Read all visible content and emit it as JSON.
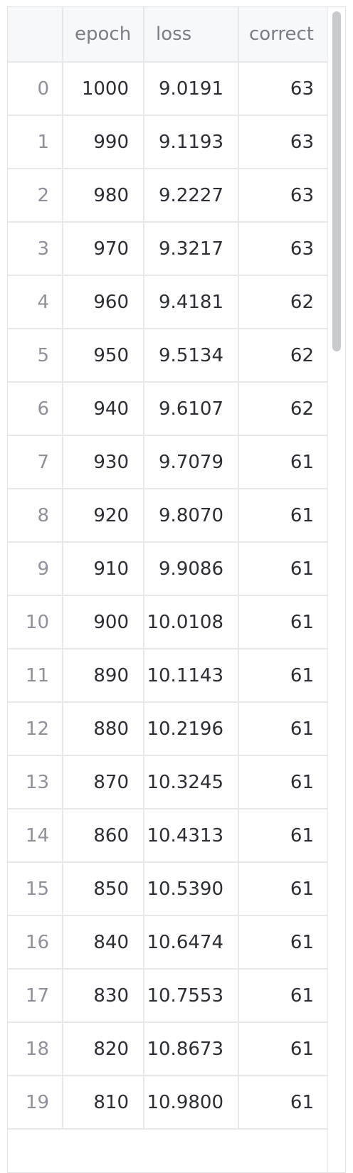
{
  "table": {
    "columns": [
      "",
      "epoch",
      "loss",
      "correct"
    ],
    "rows": [
      {
        "index": "0",
        "epoch": "1000",
        "loss": "9.0191",
        "correct": "63"
      },
      {
        "index": "1",
        "epoch": "990",
        "loss": "9.1193",
        "correct": "63"
      },
      {
        "index": "2",
        "epoch": "980",
        "loss": "9.2227",
        "correct": "63"
      },
      {
        "index": "3",
        "epoch": "970",
        "loss": "9.3217",
        "correct": "63"
      },
      {
        "index": "4",
        "epoch": "960",
        "loss": "9.4181",
        "correct": "62"
      },
      {
        "index": "5",
        "epoch": "950",
        "loss": "9.5134",
        "correct": "62"
      },
      {
        "index": "6",
        "epoch": "940",
        "loss": "9.6107",
        "correct": "62"
      },
      {
        "index": "7",
        "epoch": "930",
        "loss": "9.7079",
        "correct": "61"
      },
      {
        "index": "8",
        "epoch": "920",
        "loss": "9.8070",
        "correct": "61"
      },
      {
        "index": "9",
        "epoch": "910",
        "loss": "9.9086",
        "correct": "61"
      },
      {
        "index": "10",
        "epoch": "900",
        "loss": "10.0108",
        "correct": "61"
      },
      {
        "index": "11",
        "epoch": "890",
        "loss": "10.1143",
        "correct": "61"
      },
      {
        "index": "12",
        "epoch": "880",
        "loss": "10.2196",
        "correct": "61"
      },
      {
        "index": "13",
        "epoch": "870",
        "loss": "10.3245",
        "correct": "61"
      },
      {
        "index": "14",
        "epoch": "860",
        "loss": "10.4313",
        "correct": "61"
      },
      {
        "index": "15",
        "epoch": "850",
        "loss": "10.5390",
        "correct": "61"
      },
      {
        "index": "16",
        "epoch": "840",
        "loss": "10.6474",
        "correct": "61"
      },
      {
        "index": "17",
        "epoch": "830",
        "loss": "10.7553",
        "correct": "61"
      },
      {
        "index": "18",
        "epoch": "820",
        "loss": "10.8673",
        "correct": "61"
      },
      {
        "index": "19",
        "epoch": "810",
        "loss": "10.9800",
        "correct": "61"
      }
    ]
  },
  "colors": {
    "header_bg": "#f7f8fa",
    "header_text": "#7a7d86",
    "cell_text": "#2c2e35",
    "index_text": "#8e919a",
    "grid": "#e8e8eb",
    "scroll_thumb": "#c9cace"
  }
}
